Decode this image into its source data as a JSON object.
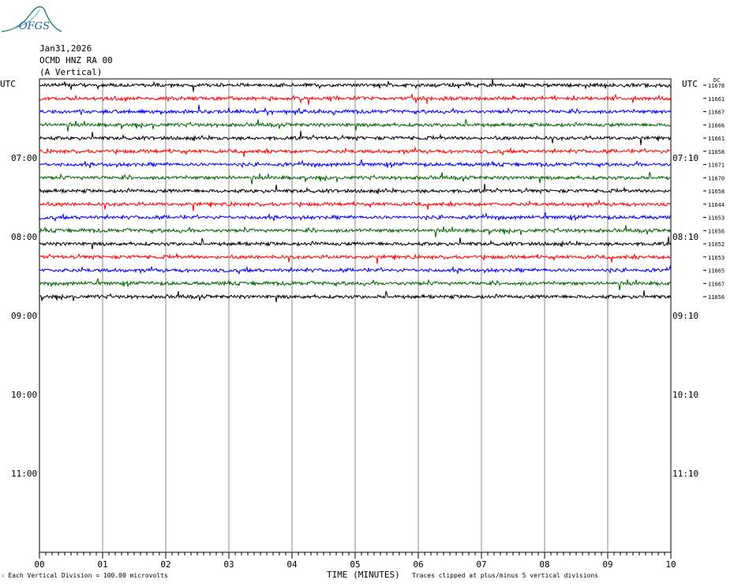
{
  "logo_text": "OFGS",
  "header": {
    "date": "Jan31,2026",
    "station": "OCMD HNZ RA 00",
    "component": "(A Vertical)"
  },
  "left_tz": "UTC",
  "right_tz": "UTC",
  "dc_header": "DC",
  "footer": {
    "scale_note": "Each Vertical Division = 100.00 microvolts",
    "x_axis_title": "TIME (MINUTES)",
    "clip_note": "Traces clipped at plus/minus 5 vertical divisions"
  },
  "colors": {
    "trace_cycle": [
      "#000000",
      "#ff0000",
      "#0000ff",
      "#006400"
    ],
    "grid": "#888888",
    "logo": "#2e8b57"
  },
  "chart_data": {
    "type": "line",
    "x_ticks": [
      "00",
      "01",
      "02",
      "03",
      "04",
      "05",
      "06",
      "07",
      "08",
      "09",
      "10"
    ],
    "xlim": [
      0,
      10
    ],
    "left_hour_labels": [
      "07:00",
      "08:00",
      "09:00",
      "10:00",
      "11:00"
    ],
    "right_hour_labels": [
      "07:10",
      "08:10",
      "09:10",
      "10:10",
      "11:10"
    ],
    "traces": [
      {
        "dc": "-11678",
        "color": "#000000"
      },
      {
        "dc": "-11661",
        "color": "#ff0000"
      },
      {
        "dc": "-11667",
        "color": "#0000ff"
      },
      {
        "dc": "-11666",
        "color": "#006400"
      },
      {
        "dc": "-11661",
        "color": "#000000"
      },
      {
        "dc": "-11658",
        "color": "#ff0000"
      },
      {
        "dc": "-11671",
        "color": "#0000ff"
      },
      {
        "dc": "-11670",
        "color": "#006400"
      },
      {
        "dc": "-11658",
        "color": "#000000"
      },
      {
        "dc": "-11644",
        "color": "#ff0000"
      },
      {
        "dc": "-11653",
        "color": "#0000ff"
      },
      {
        "dc": "-11656",
        "color": "#006400"
      },
      {
        "dc": "-11652",
        "color": "#000000"
      },
      {
        "dc": "-11653",
        "color": "#ff0000"
      },
      {
        "dc": "-11665",
        "color": "#0000ff"
      },
      {
        "dc": "-11667",
        "color": "#006400"
      },
      {
        "dc": "-11656",
        "color": "#000000"
      }
    ]
  }
}
